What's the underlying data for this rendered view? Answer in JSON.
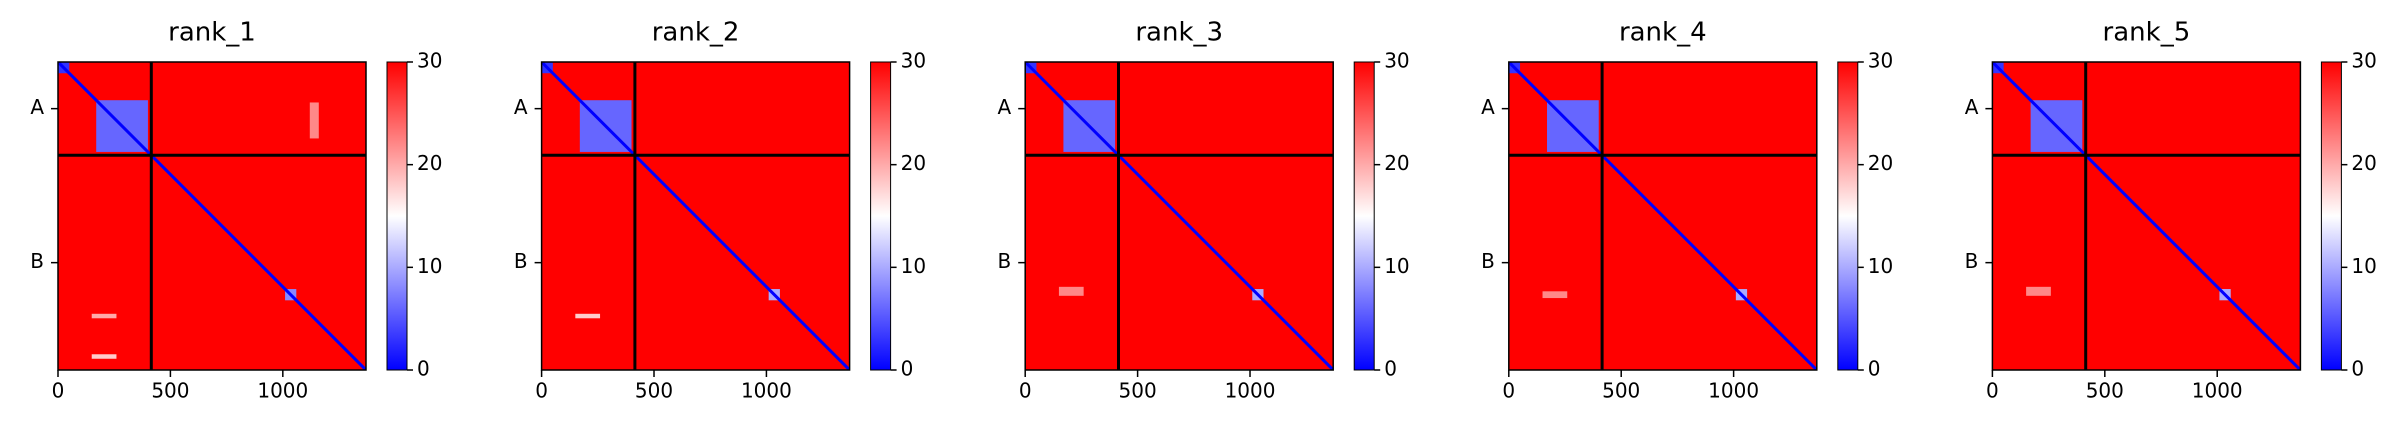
{
  "chart_data": [
    {
      "type": "heatmap",
      "title": "rank_1",
      "xlim": [
        0,
        1370
      ],
      "ylim": [
        0,
        1370
      ],
      "xticks": [
        0,
        500,
        1000
      ],
      "yticks": [
        {
          "value": 207.5,
          "label": "A"
        },
        {
          "value": 892.5,
          "label": "B"
        }
      ],
      "chain_breaks": [
        415
      ],
      "vlim": [
        0,
        30
      ],
      "cticks": [
        0,
        10,
        20,
        30
      ],
      "colormap": [
        "#0000ff",
        "#ffffff",
        "#ff0000"
      ],
      "background": 30,
      "diagonal": 0,
      "blocks": [
        {
          "x": [
            0,
            50
          ],
          "y": [
            0,
            50
          ],
          "value": 3
        },
        {
          "x": [
            170,
            400
          ],
          "y": [
            170,
            400
          ],
          "value": 6
        },
        {
          "x": [
            1010,
            1060
          ],
          "y": [
            1010,
            1060
          ],
          "value": 8
        },
        {
          "x": [
            1120,
            1160
          ],
          "y": [
            180,
            340
          ],
          "value": 22
        },
        {
          "x": [
            150,
            260
          ],
          "y": [
            1120,
            1140
          ],
          "value": 20
        },
        {
          "x": [
            150,
            260
          ],
          "y": [
            1300,
            1320
          ],
          "value": 18
        }
      ]
    },
    {
      "type": "heatmap",
      "title": "rank_2",
      "xlim": [
        0,
        1370
      ],
      "ylim": [
        0,
        1370
      ],
      "xticks": [
        0,
        500,
        1000
      ],
      "yticks": [
        {
          "value": 207.5,
          "label": "A"
        },
        {
          "value": 892.5,
          "label": "B"
        }
      ],
      "chain_breaks": [
        415
      ],
      "vlim": [
        0,
        30
      ],
      "cticks": [
        0,
        10,
        20,
        30
      ],
      "colormap": [
        "#0000ff",
        "#ffffff",
        "#ff0000"
      ],
      "background": 30,
      "diagonal": 0,
      "blocks": [
        {
          "x": [
            0,
            50
          ],
          "y": [
            0,
            50
          ],
          "value": 3
        },
        {
          "x": [
            170,
            400
          ],
          "y": [
            170,
            400
          ],
          "value": 6
        },
        {
          "x": [
            1010,
            1060
          ],
          "y": [
            1010,
            1060
          ],
          "value": 10
        },
        {
          "x": [
            150,
            260
          ],
          "y": [
            1120,
            1140
          ],
          "value": 18
        }
      ]
    },
    {
      "type": "heatmap",
      "title": "rank_3",
      "xlim": [
        0,
        1370
      ],
      "ylim": [
        0,
        1370
      ],
      "xticks": [
        0,
        500,
        1000
      ],
      "yticks": [
        {
          "value": 207.5,
          "label": "A"
        },
        {
          "value": 892.5,
          "label": "B"
        }
      ],
      "chain_breaks": [
        415
      ],
      "vlim": [
        0,
        30
      ],
      "cticks": [
        0,
        10,
        20,
        30
      ],
      "colormap": [
        "#0000ff",
        "#ffffff",
        "#ff0000"
      ],
      "background": 30,
      "diagonal": 0,
      "blocks": [
        {
          "x": [
            0,
            50
          ],
          "y": [
            0,
            50
          ],
          "value": 3
        },
        {
          "x": [
            170,
            400
          ],
          "y": [
            170,
            400
          ],
          "value": 6
        },
        {
          "x": [
            1010,
            1060
          ],
          "y": [
            1010,
            1060
          ],
          "value": 10
        },
        {
          "x": [
            150,
            260
          ],
          "y": [
            1000,
            1040
          ],
          "value": 22
        }
      ]
    },
    {
      "type": "heatmap",
      "title": "rank_4",
      "xlim": [
        0,
        1370
      ],
      "ylim": [
        0,
        1370
      ],
      "xticks": [
        0,
        500,
        1000
      ],
      "yticks": [
        {
          "value": 207.5,
          "label": "A"
        },
        {
          "value": 892.5,
          "label": "B"
        }
      ],
      "chain_breaks": [
        415
      ],
      "vlim": [
        0,
        30
      ],
      "cticks": [
        0,
        10,
        20,
        30
      ],
      "colormap": [
        "#0000ff",
        "#ffffff",
        "#ff0000"
      ],
      "background": 30,
      "diagonal": 0,
      "blocks": [
        {
          "x": [
            0,
            50
          ],
          "y": [
            0,
            50
          ],
          "value": 3
        },
        {
          "x": [
            170,
            400
          ],
          "y": [
            170,
            400
          ],
          "value": 6
        },
        {
          "x": [
            1010,
            1060
          ],
          "y": [
            1010,
            1060
          ],
          "value": 10
        },
        {
          "x": [
            150,
            260
          ],
          "y": [
            1020,
            1050
          ],
          "value": 22
        }
      ]
    },
    {
      "type": "heatmap",
      "title": "rank_5",
      "xlim": [
        0,
        1370
      ],
      "ylim": [
        0,
        1370
      ],
      "xticks": [
        0,
        500,
        1000
      ],
      "yticks": [
        {
          "value": 207.5,
          "label": "A"
        },
        {
          "value": 892.5,
          "label": "B"
        }
      ],
      "chain_breaks": [
        415
      ],
      "vlim": [
        0,
        30
      ],
      "cticks": [
        0,
        10,
        20,
        30
      ],
      "colormap": [
        "#0000ff",
        "#ffffff",
        "#ff0000"
      ],
      "background": 30,
      "diagonal": 0,
      "blocks": [
        {
          "x": [
            0,
            50
          ],
          "y": [
            0,
            50
          ],
          "value": 3
        },
        {
          "x": [
            170,
            400
          ],
          "y": [
            170,
            400
          ],
          "value": 6
        },
        {
          "x": [
            1010,
            1060
          ],
          "y": [
            1010,
            1060
          ],
          "value": 10
        },
        {
          "x": [
            150,
            260
          ],
          "y": [
            1000,
            1040
          ],
          "value": 22
        }
      ]
    }
  ]
}
